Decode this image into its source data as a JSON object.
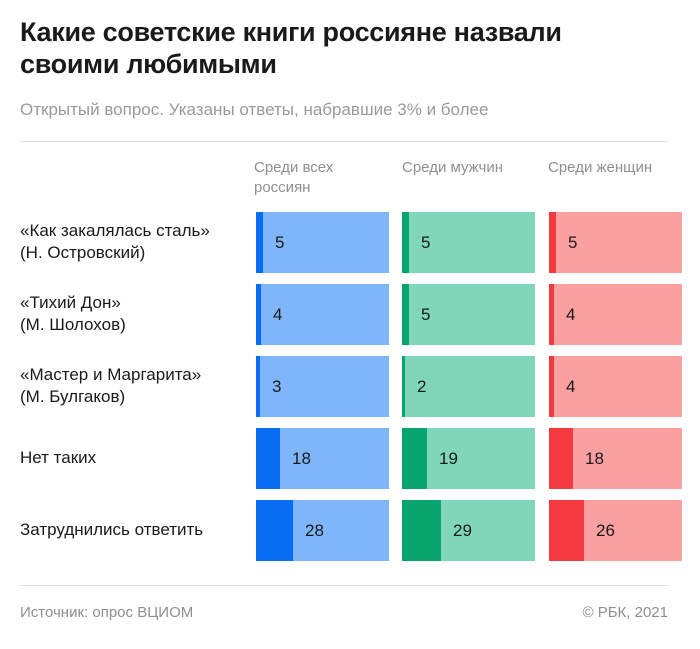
{
  "title": "Какие советские книги россияне назвали своими любимыми",
  "subtitle": "Открытый вопрос. Указаны ответы, набравшие 3% и более",
  "columns": [
    {
      "label": "Среди всех россиян",
      "bg": "#7fb6fb",
      "fill": "#0a6ef5"
    },
    {
      "label": "Среди мужчин",
      "bg": "#80d6b8",
      "fill": "#0aa56e"
    },
    {
      "label": "Среди женщин",
      "bg": "#fba0a0",
      "fill": "#f53a3f"
    }
  ],
  "rows": [
    {
      "label": "«Как закалялась сталь»\n(Н. Островский)"
    },
    {
      "label": "«Тихий Дон»\n(М. Шолохов)"
    },
    {
      "label": "«Мастер и Маргарита»\n(М. Булгаков)"
    },
    {
      "label": "Нет таких"
    },
    {
      "label": "Затруднились ответить"
    }
  ],
  "chart_data": {
    "type": "bar",
    "title": "Какие советские книги россияне назвали своими любимыми",
    "subtitle": "Открытый вопрос. Указаны ответы, набравшие 3% и более",
    "categories": [
      "«Как закалялась сталь» (Н. Островский)",
      "«Тихий Дон» (М. Шолохов)",
      "«Мастер и Маргарита» (М. Булгаков)",
      "Нет таких",
      "Затруднились ответить"
    ],
    "series": [
      {
        "name": "Среди всех россиян",
        "values": [
          5,
          4,
          3,
          18,
          28
        ]
      },
      {
        "name": "Среди мужчин",
        "values": [
          5,
          5,
          2,
          19,
          29
        ]
      },
      {
        "name": "Среди женщин",
        "values": [
          5,
          4,
          4,
          18,
          26
        ]
      }
    ],
    "unit": "%",
    "ylim": [
      0,
      100
    ]
  },
  "footer": {
    "source": "Источник: опрос ВЦИОМ",
    "copyright": "©  РБК, 2021"
  }
}
